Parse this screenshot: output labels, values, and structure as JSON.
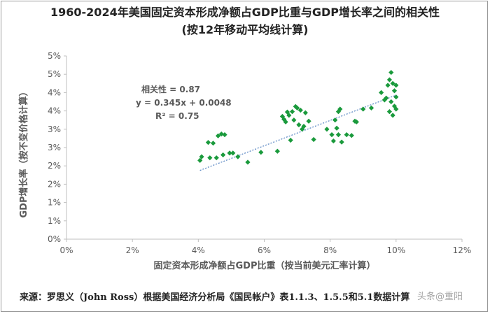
{
  "title_line1": "1960-2024年美国固定资本形成净额占GDP比重与GDP增长率之间的相关性",
  "title_line2": "(按12年移动平均线计算)",
  "source": "来源：罗思义（John Ross）根据美国经济分析局《国民帐户》表1.1.3、1.5.5和5.1数据计算",
  "watermark": "头条@重阳",
  "annotation": {
    "correlation": "相关性 = 0.87",
    "equation": "y = 0.345x + 0.0048",
    "r_squared": "R² = 0.75"
  },
  "chart_data": {
    "type": "scatter",
    "xlabel": "固定资本形成净额占GDP比重（按当前美元汇率计算）",
    "ylabel": "GDP增长率（按不变价格计算）",
    "xlim": [
      0,
      0.12
    ],
    "ylim": [
      0,
      0.05
    ],
    "x_ticks": [
      0,
      0.02,
      0.04,
      0.06,
      0.08,
      0.1,
      0.12
    ],
    "x_tick_labels": [
      "0%",
      "2%",
      "4%",
      "6%",
      "8%",
      "10%",
      "12%"
    ],
    "y_ticks": [
      0,
      0.005,
      0.01,
      0.015,
      0.02,
      0.025,
      0.03,
      0.035,
      0.04,
      0.045,
      0.05
    ],
    "y_tick_labels": [
      "0%",
      "1%",
      "1%",
      "2%",
      "2%",
      "3%",
      "3%",
      "4%",
      "4%",
      "5%",
      "5%"
    ],
    "grid": false,
    "marker_color": "#1a9a3c",
    "trendline_color": "#4f7fbf",
    "trendline": {
      "slope": 0.345,
      "intercept": 0.0048,
      "x_range": [
        0.0405,
        0.1
      ]
    },
    "x": [
      0.0405,
      0.041,
      0.043,
      0.0435,
      0.0445,
      0.0455,
      0.046,
      0.047,
      0.048,
      0.0475,
      0.0495,
      0.0505,
      0.052,
      0.055,
      0.059,
      0.064,
      0.0655,
      0.066,
      0.0665,
      0.067,
      0.0675,
      0.068,
      0.0685,
      0.069,
      0.0695,
      0.07,
      0.0705,
      0.071,
      0.0715,
      0.072,
      0.0725,
      0.0735,
      0.075,
      0.079,
      0.0805,
      0.081,
      0.0815,
      0.082,
      0.0825,
      0.0825,
      0.083,
      0.0835,
      0.085,
      0.0865,
      0.0875,
      0.088,
      0.09,
      0.0925,
      0.0955,
      0.0965,
      0.097,
      0.0975,
      0.098,
      0.0985,
      0.099,
      0.0995,
      0.1,
      0.0985,
      0.1,
      0.099,
      0.0995,
      0.098,
      0.1
    ],
    "y": [
      0.0215,
      0.0225,
      0.0264,
      0.0222,
      0.0262,
      0.0222,
      0.0282,
      0.0287,
      0.0285,
      0.023,
      0.0235,
      0.0235,
      0.0225,
      0.021,
      0.0237,
      0.024,
      0.0335,
      0.0327,
      0.032,
      0.0347,
      0.0338,
      0.027,
      0.0348,
      0.0325,
      0.0362,
      0.0358,
      0.0312,
      0.0352,
      0.03,
      0.0308,
      0.0345,
      0.0322,
      0.0272,
      0.03,
      0.0285,
      0.0268,
      0.0325,
      0.0303,
      0.0285,
      0.0348,
      0.0355,
      0.0265,
      0.0285,
      0.0283,
      0.0322,
      0.032,
      0.0355,
      0.0358,
      0.04,
      0.038,
      0.0385,
      0.042,
      0.0435,
      0.0455,
      0.0425,
      0.0405,
      0.042,
      0.0375,
      0.0388,
      0.0338,
      0.0363,
      0.0348,
      0.0355
    ]
  }
}
